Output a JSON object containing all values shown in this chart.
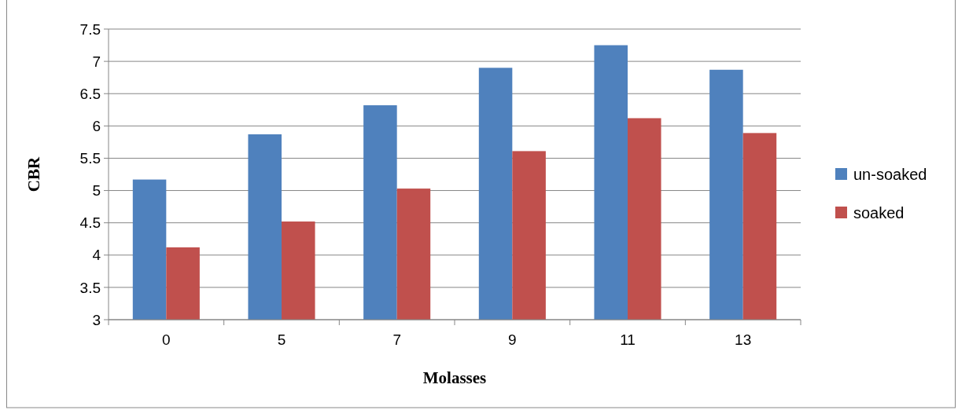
{
  "chart_data": {
    "type": "bar",
    "xlabel": "Molasses",
    "ylabel": "CBR",
    "categories": [
      "0",
      "5",
      "7",
      "9",
      "11",
      "13"
    ],
    "series": [
      {
        "name": "un-soaked",
        "color": "#4f81bd",
        "values": [
          5.17,
          5.87,
          6.32,
          6.9,
          7.25,
          6.87
        ]
      },
      {
        "name": "soaked",
        "color": "#c0504d",
        "values": [
          4.12,
          4.52,
          5.03,
          5.61,
          6.12,
          5.89
        ]
      }
    ],
    "ylim": [
      3,
      7.5
    ],
    "yticks": [
      3,
      3.5,
      4,
      4.5,
      5,
      5.5,
      6,
      6.5,
      7,
      7.5
    ],
    "grid": "y",
    "legend": "right"
  }
}
